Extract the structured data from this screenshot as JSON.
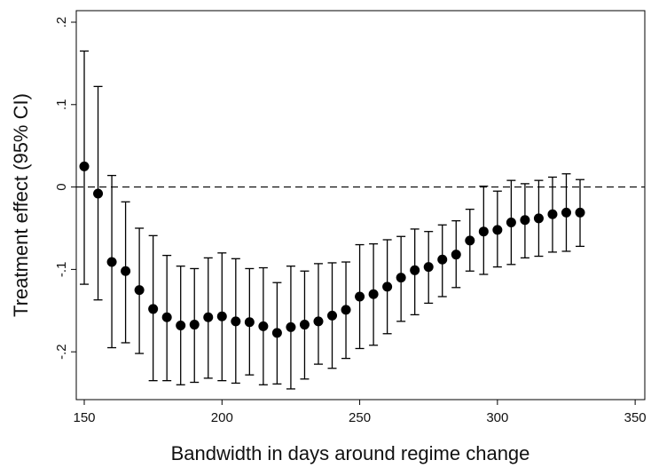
{
  "chart_data": {
    "type": "errorbar",
    "x_label": "Bandwidth in days around regime change",
    "y_label": "Treatment effect (95% CI)",
    "x": [
      150,
      155,
      160,
      165,
      170,
      175,
      180,
      185,
      190,
      195,
      200,
      205,
      210,
      215,
      220,
      225,
      230,
      235,
      240,
      245,
      250,
      255,
      260,
      265,
      270,
      275,
      280,
      285,
      290,
      295,
      300,
      305,
      310,
      315,
      320,
      325,
      330
    ],
    "series": [
      {
        "color": "#000000",
        "values": [
          0.025,
          -0.008,
          -0.091,
          -0.102,
          -0.125,
          -0.148,
          -0.158,
          -0.168,
          -0.167,
          -0.158,
          -0.157,
          -0.163,
          -0.164,
          -0.169,
          -0.177,
          -0.17,
          -0.167,
          -0.163,
          -0.156,
          -0.149,
          -0.133,
          -0.13,
          -0.121,
          -0.11,
          -0.101,
          -0.097,
          -0.088,
          -0.082,
          -0.065,
          -0.054,
          -0.052,
          -0.043,
          -0.04,
          -0.038,
          -0.033,
          -0.031,
          -0.031
        ],
        "upper": [
          0.165,
          0.122,
          0.014,
          -0.018,
          -0.05,
          -0.059,
          -0.083,
          -0.096,
          -0.099,
          -0.086,
          -0.08,
          -0.087,
          -0.099,
          -0.098,
          -0.116,
          -0.096,
          -0.102,
          -0.093,
          -0.092,
          -0.091,
          -0.07,
          -0.069,
          -0.064,
          -0.06,
          -0.051,
          -0.054,
          -0.046,
          -0.041,
          -0.027,
          0.001,
          -0.005,
          0.008,
          0.004,
          0.008,
          0.012,
          0.016,
          0.009
        ],
        "lower": [
          -0.118,
          -0.137,
          -0.195,
          -0.189,
          -0.202,
          -0.235,
          -0.235,
          -0.24,
          -0.237,
          -0.232,
          -0.235,
          -0.238,
          -0.228,
          -0.24,
          -0.239,
          -0.245,
          -0.233,
          -0.215,
          -0.22,
          -0.208,
          -0.196,
          -0.192,
          -0.178,
          -0.163,
          -0.155,
          -0.141,
          -0.133,
          -0.122,
          -0.102,
          -0.106,
          -0.097,
          -0.094,
          -0.086,
          -0.084,
          -0.079,
          -0.078,
          -0.072
        ]
      }
    ],
    "xlim": [
      147.1,
      353.5
    ],
    "xticks": [
      150,
      200,
      250,
      300,
      350
    ],
    "ylim": [
      -0.258,
      0.214
    ],
    "yticks": [
      {
        "value": 0.2,
        "label": ".2"
      },
      {
        "value": 0.1,
        "label": ".1"
      },
      0,
      {
        "value": -0.1,
        "label": "-.1"
      },
      {
        "value": -0.2,
        "label": "-.2"
      }
    ],
    "reference_line": 0
  }
}
